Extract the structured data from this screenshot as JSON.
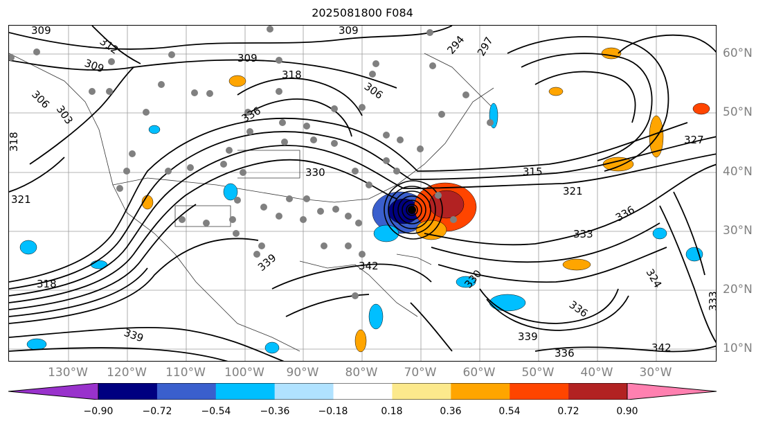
{
  "title": "2025081800 F084",
  "lon_labels": [
    "130°W",
    "120°W",
    "110°W",
    "100°W",
    "90°W",
    "80°W",
    "70°W",
    "60°W",
    "50°W",
    "40°W",
    "30°W"
  ],
  "lat_labels": [
    "60°N",
    "50°N",
    "40°N",
    "30°N",
    "20°N",
    "10°N"
  ],
  "contour_labels": [
    "309",
    "312",
    "309",
    "306",
    "303",
    "318",
    "321",
    "318",
    "309",
    "318",
    "336",
    "330",
    "306",
    "309",
    "294",
    "297",
    "315",
    "321",
    "336",
    "333",
    "324",
    "327",
    "339",
    "342",
    "336",
    "339",
    "342",
    "336",
    "333",
    "339",
    "330"
  ],
  "colorbar": {
    "ticks": [
      "−0.90",
      "−0.72",
      "−0.54",
      "−0.36",
      "−0.18",
      "0.18",
      "0.36",
      "0.54",
      "0.72",
      "0.90"
    ],
    "colors": [
      "#9932cc",
      "#000080",
      "#3a5fcd",
      "#00bfff",
      "#b0e2ff",
      "#ffffff",
      "#fce98c",
      "#ffa500",
      "#ff4500",
      "#b22222",
      "#ff80b0"
    ]
  }
}
